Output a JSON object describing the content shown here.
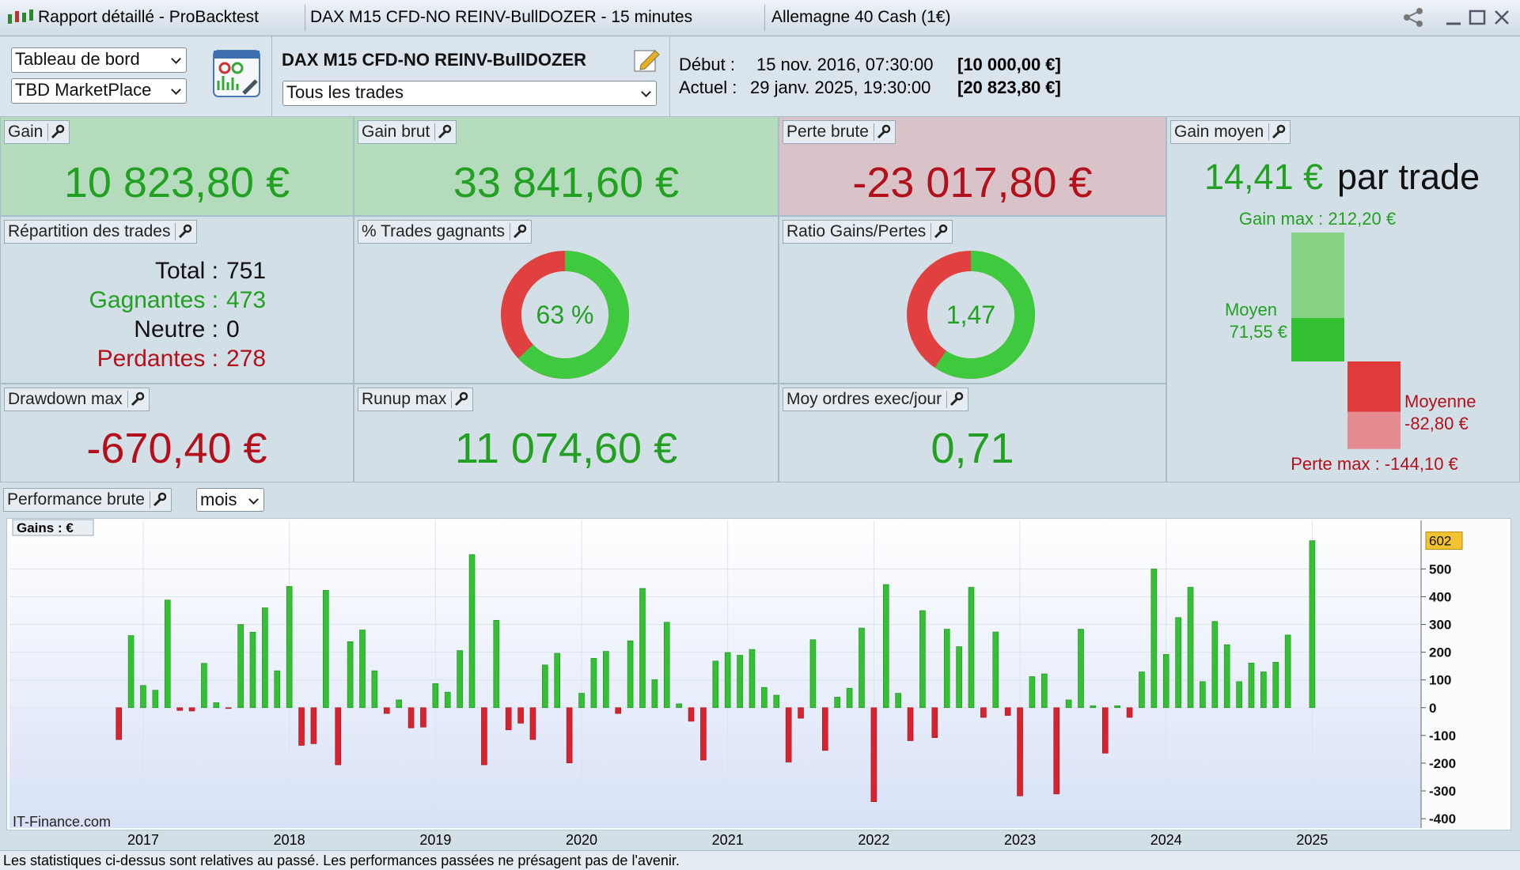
{
  "window": {
    "title": "Rapport détaillé - ProBacktest",
    "system": "DAX M15 CFD-NO REINV-BullDOZER - 15 minutes",
    "instrument": "Allemagne 40 Cash (1€)"
  },
  "toolbar": {
    "view_select": "Tableau de bord",
    "source_select": "TBD MarketPlace",
    "system_name": "DAX M15 CFD-NO REINV-BullDOZER",
    "trade_filter": "Tous les trades",
    "start_label": "Début :",
    "start_date": "15 nov. 2016, 07:30:00",
    "start_capital": "[10 000,00 €]",
    "current_label": "Actuel :",
    "current_date": "29 janv. 2025, 19:30:00",
    "current_capital": "[20 823,80 €]"
  },
  "panels": {
    "gain": {
      "title": "Gain",
      "value": "10 823,80 €"
    },
    "gross_gain": {
      "title": "Gain brut",
      "value": "33 841,60 €"
    },
    "gross_loss": {
      "title": "Perte brute",
      "value": "-23 017,80 €"
    },
    "trades": {
      "title": "Répartition des trades",
      "rows": [
        {
          "label": "Total :",
          "value": "751"
        },
        {
          "label": "Gagnantes :",
          "value": "473"
        },
        {
          "label": "Neutre :",
          "value": "0"
        },
        {
          "label": "Perdantes :",
          "value": "278"
        }
      ]
    },
    "win_rate": {
      "title": "% Trades gagnants",
      "value": {
        "value": 63,
        "label": "63 %"
      }
    },
    "ratio": {
      "title": "Ratio Gains/Pertes",
      "value": {
        "value": 1.47,
        "label": "1,47"
      }
    },
    "drawdown": {
      "title": "Drawdown max",
      "value": "-670,40 €"
    },
    "runup": {
      "title": "Runup max",
      "value": "11 074,60 €"
    },
    "orders": {
      "title": "Moy ordres exec/jour",
      "value": "0,71"
    },
    "avg_gain": {
      "title": "Gain moyen",
      "value": "14,41 €",
      "unit": "par trade",
      "max_gain_label": "Gain max :",
      "max_gain": {
        "value": 212.2,
        "label": "212,20 €"
      },
      "avg_win_label": "Moyen",
      "avg_win": {
        "value": 71.55,
        "label": "71,55 €"
      },
      "avg_loss_label": "Moyenne",
      "avg_loss": {
        "value": -82.8,
        "label": "-82,80 €"
      },
      "max_loss_label": "Perte max :",
      "max_loss": {
        "value": -144.1,
        "label": "-144,10 €"
      }
    }
  },
  "performance": {
    "title": "Performance brute",
    "period_select": "mois",
    "watermark": "IT-Finance.com"
  },
  "chart_data": {
    "type": "bar",
    "y_label": "Gains : €",
    "categories": [
      null,
      null,
      "2017",
      null,
      null,
      null,
      null,
      null,
      null,
      null,
      null,
      null,
      null,
      null,
      "2018",
      null,
      null,
      null,
      null,
      null,
      null,
      null,
      null,
      null,
      null,
      null,
      "2019",
      null,
      null,
      null,
      null,
      null,
      null,
      null,
      null,
      null,
      null,
      null,
      "2020",
      null,
      null,
      null,
      null,
      null,
      null,
      null,
      null,
      null,
      null,
      null,
      "2021",
      null,
      null,
      null,
      null,
      null,
      null,
      null,
      null,
      null,
      null,
      null,
      "2022",
      null,
      null,
      null,
      null,
      null,
      null,
      null,
      null,
      null,
      null,
      null,
      "2023",
      null,
      null,
      null,
      null,
      null,
      null,
      null,
      null,
      null,
      null,
      null,
      "2024",
      null,
      null,
      null,
      null,
      null,
      null,
      null,
      null,
      null,
      null,
      null,
      "2025"
    ],
    "values": [
      -115,
      260,
      80,
      63,
      388,
      -10,
      -12,
      160,
      18,
      -3,
      300,
      272,
      360,
      133,
      437,
      -136,
      -130,
      423,
      -206,
      238,
      280,
      133,
      -21,
      28,
      -73,
      -70,
      87,
      56,
      206,
      552,
      -206,
      315,
      -80,
      -56,
      -115,
      154,
      196,
      -199,
      52,
      178,
      203,
      -21,
      241,
      430,
      101,
      308,
      14,
      -49,
      -189,
      168,
      199,
      189,
      210,
      73,
      45,
      -196,
      -38,
      245,
      -154,
      38,
      70,
      287,
      -339,
      444,
      52,
      -119,
      350,
      -108,
      283,
      220,
      434,
      -35,
      273,
      -28,
      -318,
      112,
      122,
      -311,
      28,
      283,
      7,
      -164,
      7,
      -35,
      129,
      500,
      192,
      325,
      434,
      94,
      311,
      227,
      94,
      161,
      129,
      164,
      262,
      0,
      602
    ],
    "positive_color": "#33c133",
    "negative_color": "#d8232f",
    "ylim": [
      -434,
      675
    ],
    "yticks": [
      -400,
      -300,
      -200,
      -100,
      0,
      100,
      200,
      300,
      400,
      500
    ],
    "grid": true
  },
  "footer": "Les statistiques ci-dessus sont relatives au passé. Les performances passées ne présagent pas de l'avenir."
}
